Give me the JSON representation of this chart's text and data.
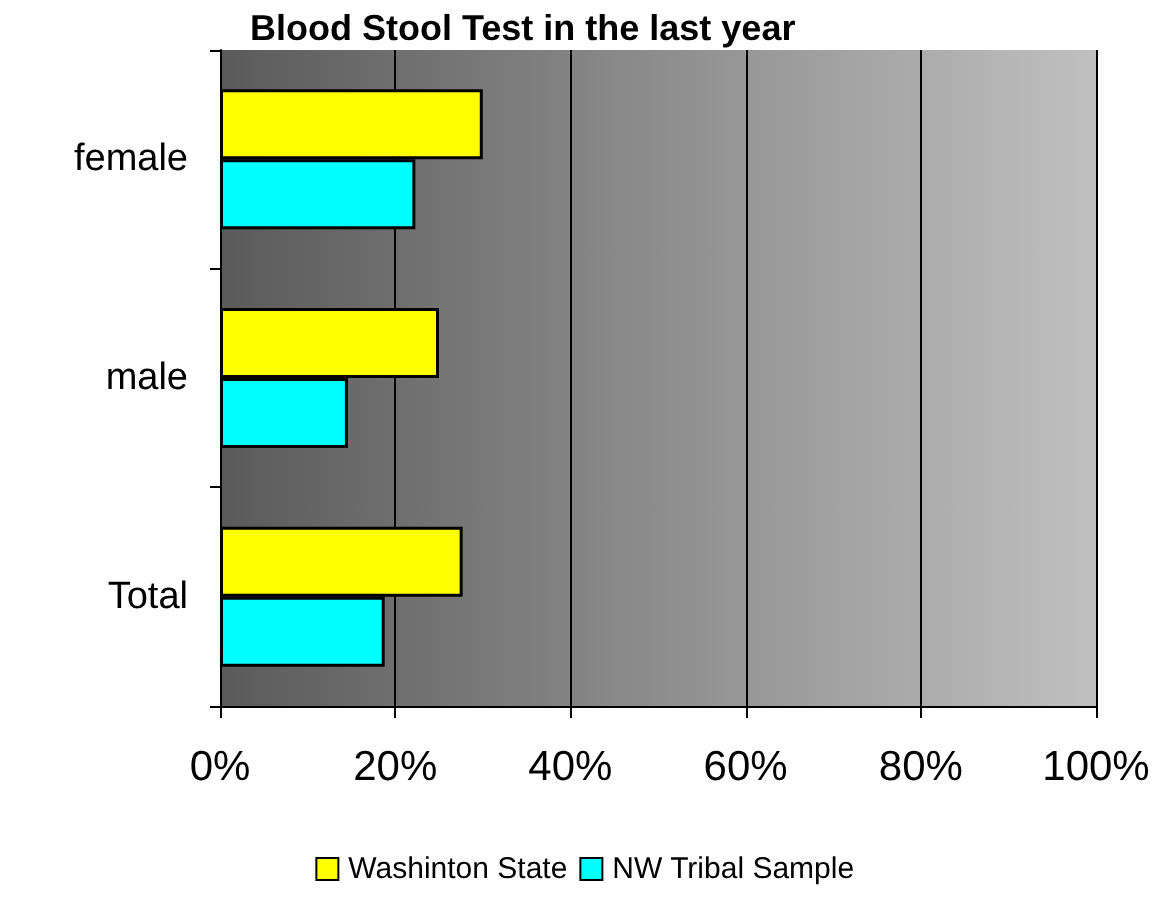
{
  "chart_data": {
    "type": "bar",
    "orientation": "horizontal",
    "title": "Blood Stool Test in the last year",
    "categories": [
      "female",
      "male",
      "Total"
    ],
    "series": [
      {
        "name": "Washinton State",
        "color": "#ffff00",
        "values": [
          30,
          25,
          27.7
        ]
      },
      {
        "name": "NW Tribal Sample",
        "color": "#00ffff",
        "values": [
          22.3,
          14.6,
          18.8
        ]
      }
    ],
    "xlim": [
      0,
      100
    ],
    "xticks": [
      {
        "value": 0,
        "label": "0%"
      },
      {
        "value": 20,
        "label": "20%"
      },
      {
        "value": 40,
        "label": "40%"
      },
      {
        "value": 60,
        "label": "60%"
      },
      {
        "value": 80,
        "label": "80%"
      },
      {
        "value": 100,
        "label": "100%"
      }
    ],
    "grid": "x",
    "legend": "bottom"
  }
}
